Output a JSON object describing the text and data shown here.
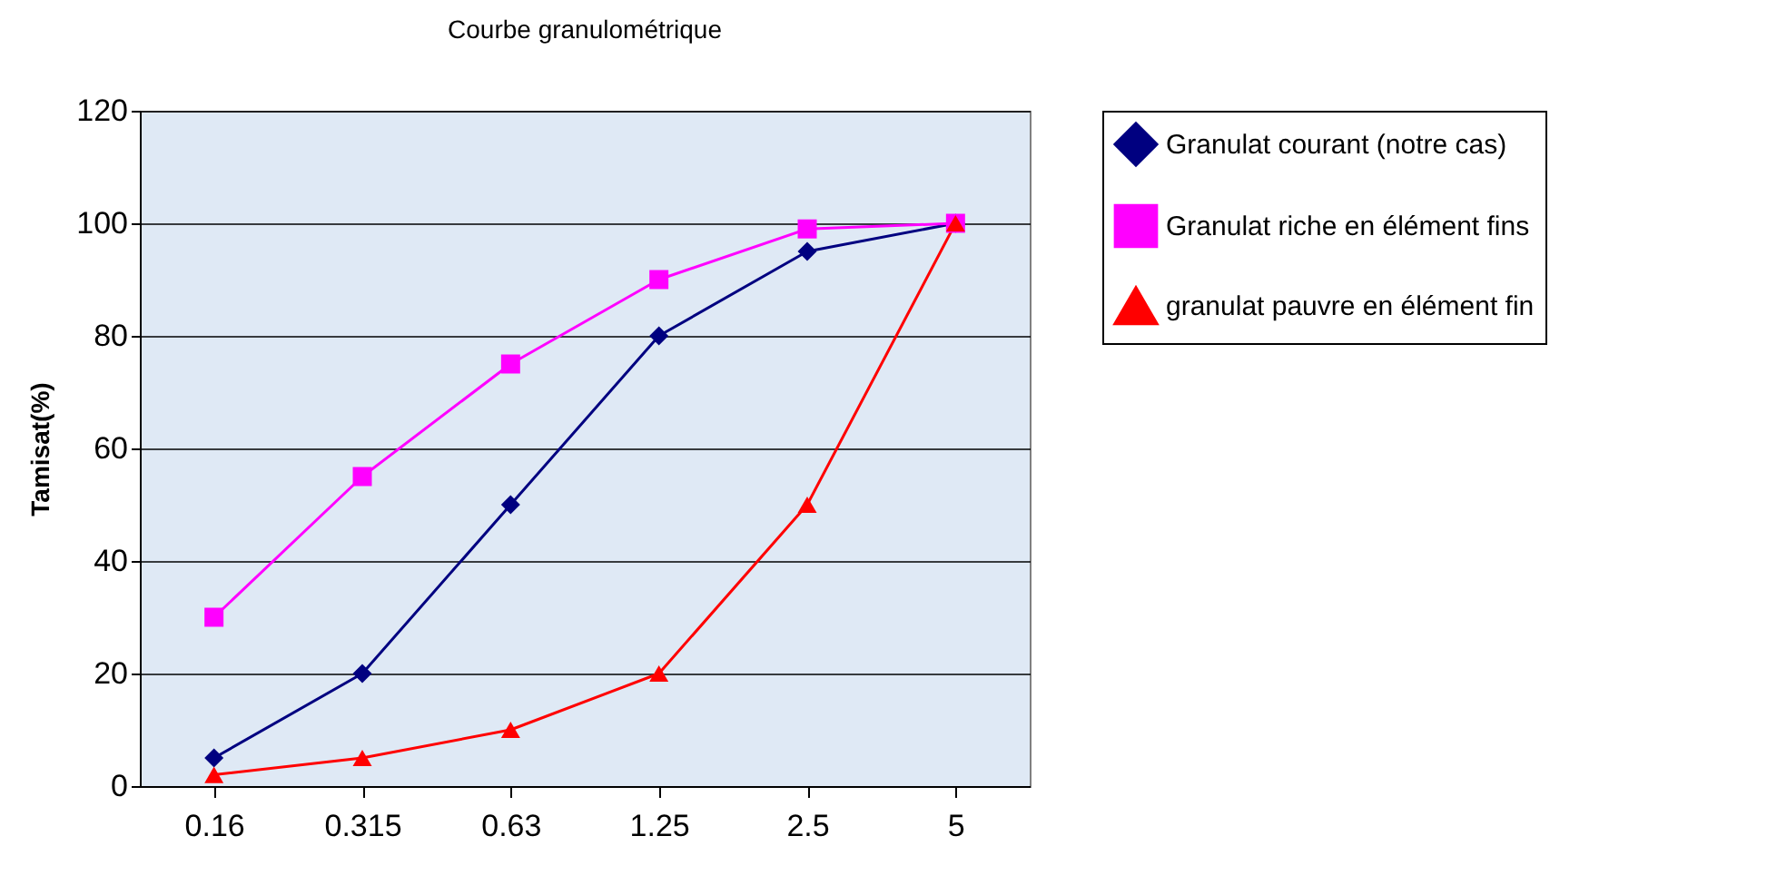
{
  "chart_data": {
    "type": "line",
    "title": "Courbe granulométrique",
    "ylabel": "Tamisat(%)",
    "categories": [
      "0.16",
      "0.315",
      "0.63",
      "1.25",
      "2.5",
      "5"
    ],
    "series": [
      {
        "name": "Granulat courant (notre cas)",
        "color": "#000080",
        "marker": "diamond",
        "values": [
          5,
          20,
          50,
          80,
          95,
          100
        ]
      },
      {
        "name": "Granulat riche en élément fins",
        "color": "#ff00ff",
        "marker": "square",
        "values": [
          30,
          55,
          75,
          90,
          99,
          100
        ]
      },
      {
        "name": "granulat pauvre en élément fin",
        "color": "#ff0000",
        "marker": "triangle",
        "values": [
          2,
          5,
          10,
          20,
          50,
          100
        ]
      }
    ],
    "ylim": [
      0,
      120
    ],
    "yticks": [
      0,
      20,
      40,
      60,
      80,
      100,
      120
    ],
    "grid": "y",
    "legend": "right",
    "line_style": "solid"
  }
}
